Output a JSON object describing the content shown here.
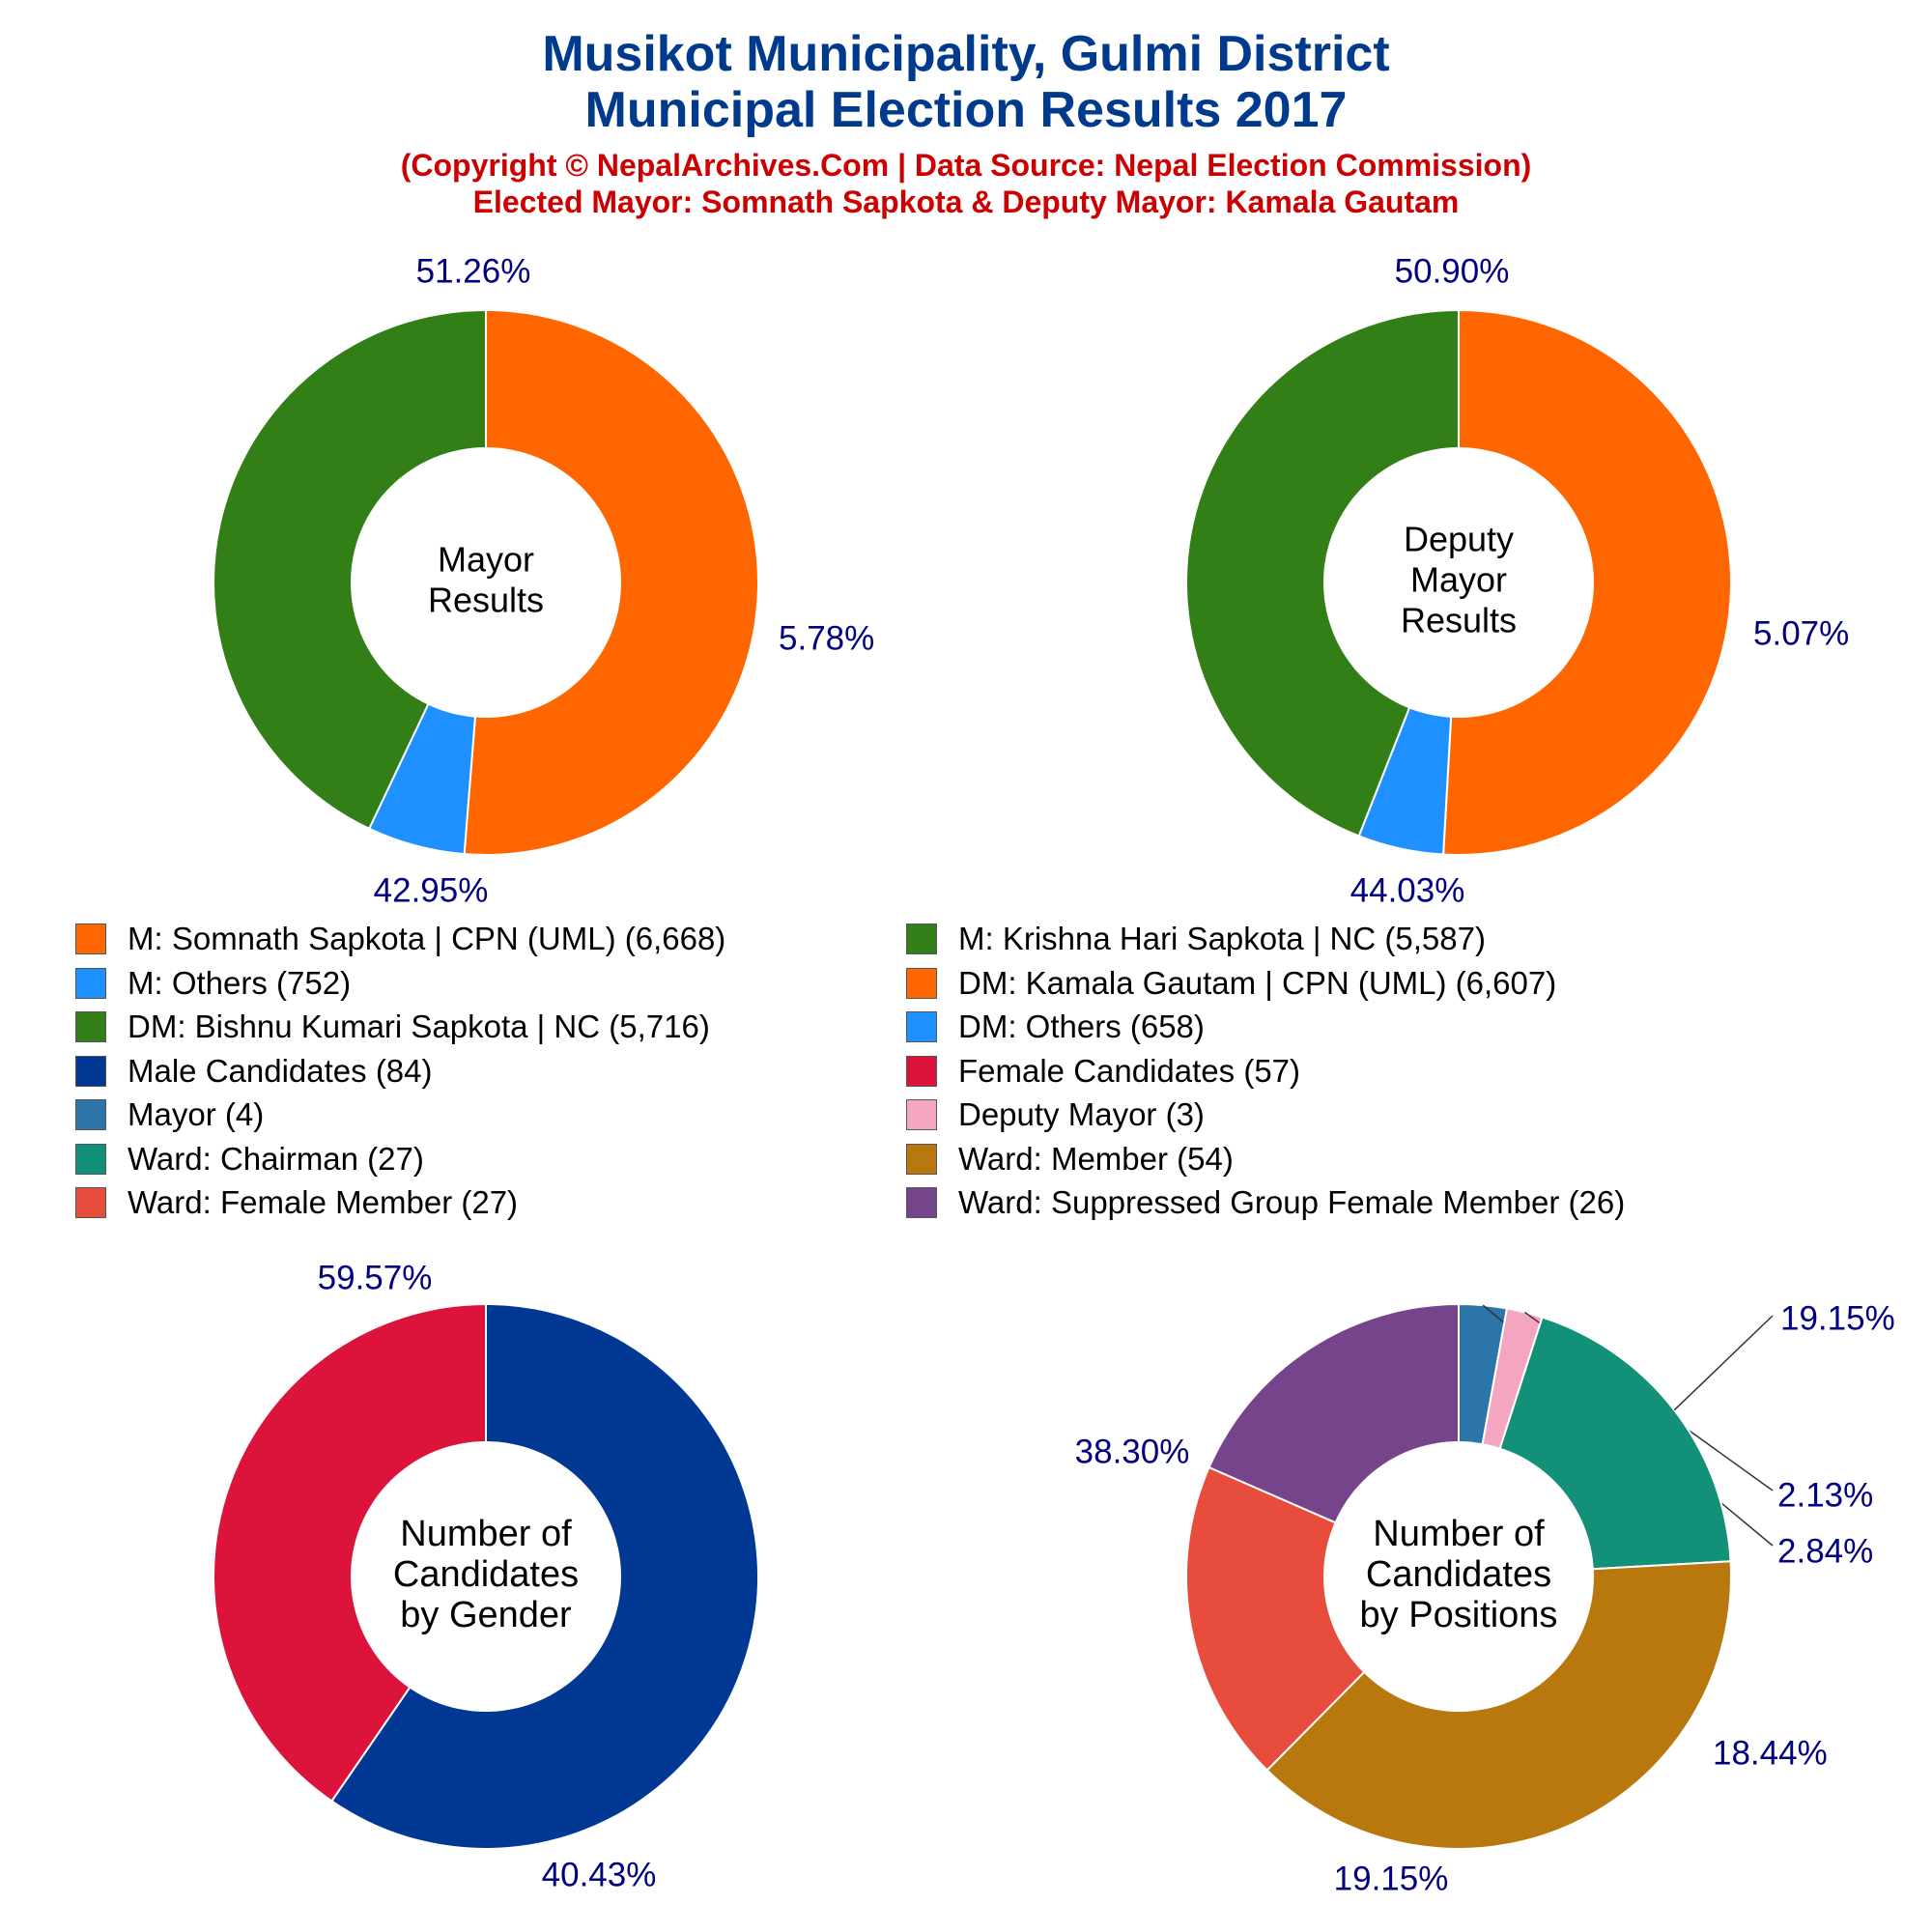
{
  "header": {
    "title_line1": "Musikot Municipality, Gulmi District",
    "title_line2": "Municipal Election Results 2017",
    "subtitle_line1": "(Copyright © NepalArchives.Com | Data Source: Nepal Election Commission)",
    "subtitle_line2": "Elected Mayor: Somnath Sapkota & Deputy Mayor: Kamala Gautam"
  },
  "colors": {
    "percent_label": "#000080",
    "center_label": "#000000"
  },
  "chart_data": [
    {
      "type": "pie",
      "center_label": [
        "Mayor",
        "Results"
      ],
      "slices": [
        {
          "label": "M: Somnath Sapkota | CPN (UML) (6,668)",
          "value": 6668,
          "percent_label": "51.26%",
          "color": "#ff6600"
        },
        {
          "label": "M: Others (752)",
          "value": 752,
          "percent_label": "5.78%",
          "color": "#1e90ff"
        },
        {
          "label": "M: Krishna Hari Sapkota | NC (5,587)",
          "value": 5587,
          "percent_label": "42.95%",
          "color": "#337f17"
        }
      ]
    },
    {
      "type": "pie",
      "center_label": [
        "Deputy",
        "Mayor",
        "Results"
      ],
      "slices": [
        {
          "label": "DM: Kamala Gautam | CPN (UML) (6,607)",
          "value": 6607,
          "percent_label": "50.90%",
          "color": "#ff6600"
        },
        {
          "label": "DM: Others (658)",
          "value": 658,
          "percent_label": "5.07%",
          "color": "#1e90ff"
        },
        {
          "label": "DM: Bishnu Kumari Sapkota | NC (5,716)",
          "value": 5716,
          "percent_label": "44.03%",
          "color": "#337f17"
        }
      ]
    },
    {
      "type": "pie",
      "center_label": [
        "Number of",
        "Candidates",
        "by Gender"
      ],
      "slices": [
        {
          "label": "Male Candidates (84)",
          "value": 84,
          "percent_label": "59.57%",
          "color": "#003893"
        },
        {
          "label": "Female Candidates (57)",
          "value": 57,
          "percent_label": "40.43%",
          "color": "#dc143c"
        }
      ]
    },
    {
      "type": "pie",
      "center_label": [
        "Number of",
        "Candidates",
        "by Positions"
      ],
      "slices": [
        {
          "label": "Mayor (4)",
          "value": 4,
          "percent_label": "2.84%",
          "color": "#2c75a8"
        },
        {
          "label": "Deputy Mayor (3)",
          "value": 3,
          "percent_label": "2.13%",
          "color": "#f4a6c0"
        },
        {
          "label": "Ward: Chairman (27)",
          "value": 27,
          "percent_label": "19.15%",
          "color": "#129078"
        },
        {
          "label": "Ward: Member (54)",
          "value": 54,
          "percent_label": "38.30%",
          "color": "#b8780e"
        },
        {
          "label": "Ward: Female Member (27)",
          "value": 27,
          "percent_label": "19.15%",
          "color": "#e74c3c"
        },
        {
          "label": "Ward: Suppressed Group Female Member (26)",
          "value": 26,
          "percent_label": "18.44%",
          "color": "#76448a"
        }
      ]
    }
  ],
  "legend": [
    {
      "label": "M: Somnath Sapkota | CPN (UML) (6,668)",
      "color": "#ff6600"
    },
    {
      "label": "M: Krishna Hari Sapkota | NC (5,587)",
      "color": "#337f17"
    },
    {
      "label": "M: Others (752)",
      "color": "#1e90ff"
    },
    {
      "label": "DM: Kamala Gautam | CPN (UML) (6,607)",
      "color": "#ff6600"
    },
    {
      "label": "DM: Bishnu Kumari Sapkota | NC (5,716)",
      "color": "#337f17"
    },
    {
      "label": "DM: Others (658)",
      "color": "#1e90ff"
    },
    {
      "label": "Male Candidates (84)",
      "color": "#003893"
    },
    {
      "label": "Female Candidates (57)",
      "color": "#dc143c"
    },
    {
      "label": "Mayor (4)",
      "color": "#2c75a8"
    },
    {
      "label": "Deputy Mayor (3)",
      "color": "#f4a6c0"
    },
    {
      "label": "Ward: Chairman (27)",
      "color": "#129078"
    },
    {
      "label": "Ward: Member (54)",
      "color": "#b8780e"
    },
    {
      "label": "Ward: Female Member (27)",
      "color": "#e74c3c"
    },
    {
      "label": "Ward: Suppressed Group Female Member (26)",
      "color": "#76448a"
    }
  ]
}
